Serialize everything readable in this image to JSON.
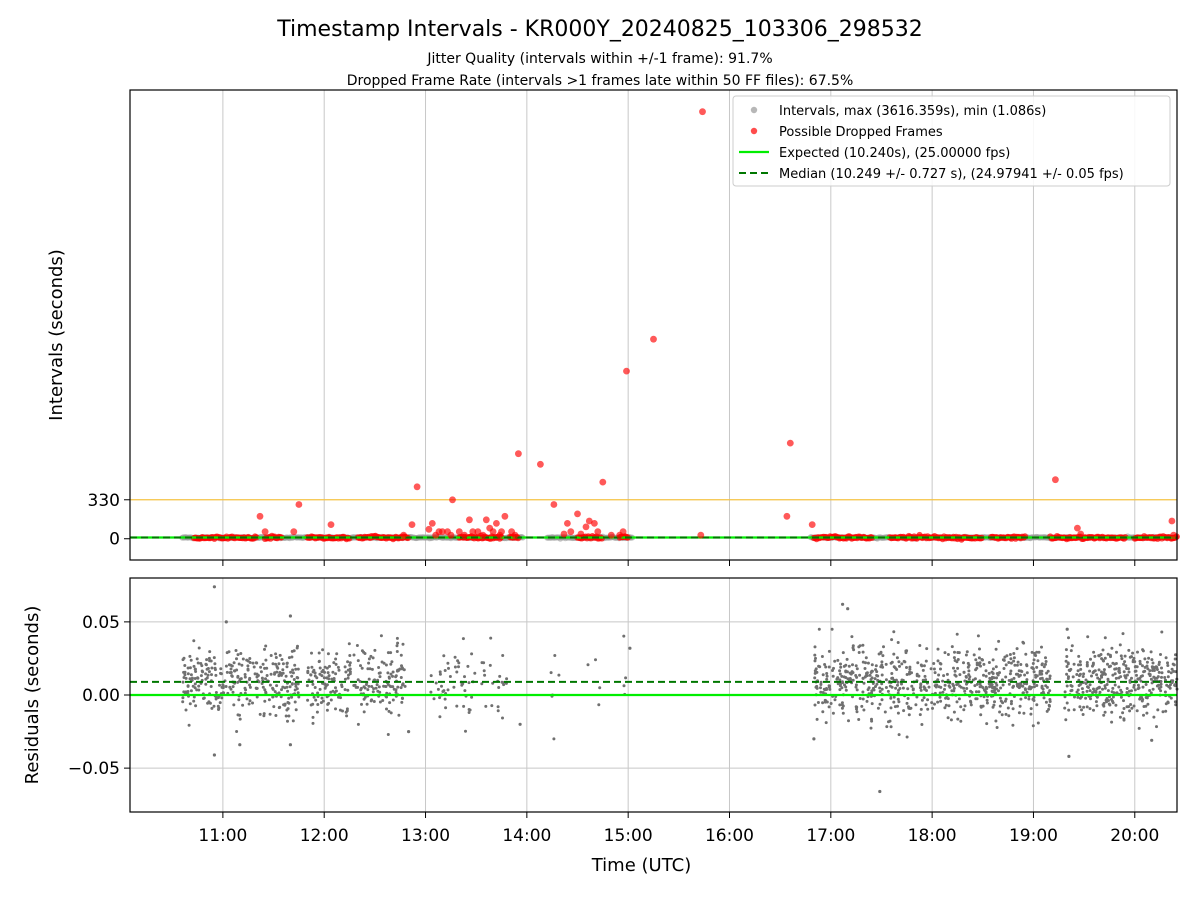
{
  "title": "Timestamp Intervals - KR000Y_20240825_103306_298532",
  "subtitle_1": "Jitter Quality (intervals within +/-1 frame): 91.7%",
  "subtitle_2": "Dropped Frame Rate (intervals >1 frames late within 50 FF files): 67.5%",
  "colors": {
    "intervals": "#999999",
    "dropped": "#ff0000",
    "expected": "#00ee00",
    "median": "#007700",
    "threshold": "#f5c242",
    "residual": "#707070",
    "grid": "#c8c8c8"
  },
  "chart_data": [
    {
      "type": "scatter",
      "panel": "top",
      "ylabel": "Intervals (seconds)",
      "y_ticks": [
        0,
        330
      ],
      "y_tick_labels": [
        "0",
        "330"
      ],
      "ylim": [
        -180,
        3800
      ],
      "xlim": [
        "10:05",
        "20:25"
      ],
      "grid": "x",
      "threshold_line": 330,
      "legend_position": "top-right",
      "legend": [
        "Intervals, max (3616.359s), min (1.086s)",
        "Possible Dropped Frames",
        "Expected (10.240s), (25.00000 fps)",
        "Median (10.249 +/- 0.727 s), (24.97941 +/- 0.05 fps)"
      ],
      "expected": 10.24,
      "median": 10.249,
      "dropped_frames": [
        {
          "t": "11:22",
          "y": 190
        },
        {
          "t": "11:25",
          "y": 60
        },
        {
          "t": "11:42",
          "y": 60
        },
        {
          "t": "11:45",
          "y": 290
        },
        {
          "t": "12:04",
          "y": 120
        },
        {
          "t": "12:47",
          "y": 30
        },
        {
          "t": "12:52",
          "y": 120
        },
        {
          "t": "12:55",
          "y": 440
        },
        {
          "t": "13:02",
          "y": 80
        },
        {
          "t": "13:04",
          "y": 130
        },
        {
          "t": "13:06",
          "y": 30
        },
        {
          "t": "13:08",
          "y": 60
        },
        {
          "t": "13:10",
          "y": 60
        },
        {
          "t": "13:13",
          "y": 60
        },
        {
          "t": "13:15",
          "y": 30
        },
        {
          "t": "13:16",
          "y": 330
        },
        {
          "t": "13:20",
          "y": 60
        },
        {
          "t": "13:23",
          "y": 30
        },
        {
          "t": "13:26",
          "y": 160
        },
        {
          "t": "13:28",
          "y": 60
        },
        {
          "t": "13:31",
          "y": 60
        },
        {
          "t": "13:34",
          "y": 30
        },
        {
          "t": "13:36",
          "y": 160
        },
        {
          "t": "13:38",
          "y": 90
        },
        {
          "t": "13:40",
          "y": 60
        },
        {
          "t": "13:42",
          "y": 130
        },
        {
          "t": "13:44",
          "y": 30
        },
        {
          "t": "13:45",
          "y": 60
        },
        {
          "t": "13:47",
          "y": 190
        },
        {
          "t": "13:51",
          "y": 60
        },
        {
          "t": "13:53",
          "y": 30
        },
        {
          "t": "13:55",
          "y": 720
        },
        {
          "t": "14:08",
          "y": 630
        },
        {
          "t": "14:16",
          "y": 290
        },
        {
          "t": "14:22",
          "y": 40
        },
        {
          "t": "14:24",
          "y": 130
        },
        {
          "t": "14:26",
          "y": 60
        },
        {
          "t": "14:30",
          "y": 210
        },
        {
          "t": "14:32",
          "y": 40
        },
        {
          "t": "14:35",
          "y": 100
        },
        {
          "t": "14:37",
          "y": 150
        },
        {
          "t": "14:40",
          "y": 130
        },
        {
          "t": "14:42",
          "y": 60
        },
        {
          "t": "14:45",
          "y": 480
        },
        {
          "t": "14:50",
          "y": 30
        },
        {
          "t": "14:55",
          "y": 30
        },
        {
          "t": "14:57",
          "y": 60
        },
        {
          "t": "14:59",
          "y": 1420
        },
        {
          "t": "15:15",
          "y": 1690
        },
        {
          "t": "15:43",
          "y": 30
        },
        {
          "t": "15:44",
          "y": 3616
        },
        {
          "t": "16:34",
          "y": 190
        },
        {
          "t": "16:36",
          "y": 810
        },
        {
          "t": "16:49",
          "y": 120
        },
        {
          "t": "19:13",
          "y": 500
        },
        {
          "t": "19:26",
          "y": 90
        },
        {
          "t": "19:28",
          "y": 40
        },
        {
          "t": "20:22",
          "y": 150
        },
        {
          "t": "20:23",
          "y": 30
        }
      ],
      "dropped_clusters": [
        {
          "start": "10:43",
          "end": "11:20"
        },
        {
          "start": "11:25",
          "end": "11:35"
        },
        {
          "start": "11:50",
          "end": "12:15"
        },
        {
          "start": "12:20",
          "end": "12:50"
        },
        {
          "start": "13:20",
          "end": "13:45"
        },
        {
          "start": "13:50",
          "end": "13:55"
        },
        {
          "start": "14:30",
          "end": "14:45"
        },
        {
          "start": "14:55",
          "end": "15:00"
        },
        {
          "start": "16:50",
          "end": "17:25"
        },
        {
          "start": "17:35",
          "end": "18:30"
        },
        {
          "start": "18:35",
          "end": "18:55"
        },
        {
          "start": "19:10",
          "end": "19:20"
        },
        {
          "start": "19:20",
          "end": "19:55"
        },
        {
          "start": "20:00",
          "end": "20:25"
        }
      ]
    },
    {
      "type": "scatter",
      "panel": "bottom",
      "xlabel": "Time (UTC)",
      "ylabel": "Residuals (seconds)",
      "y_ticks": [
        0.05,
        0.0,
        -0.05
      ],
      "y_tick_labels": [
        "0.05",
        "0.00",
        "−0.05"
      ],
      "ylim": [
        -0.08,
        0.08
      ],
      "x_ticks": [
        "11:00",
        "12:00",
        "13:00",
        "14:00",
        "15:00",
        "16:00",
        "17:00",
        "18:00",
        "19:00",
        "20:00"
      ],
      "grid": "both",
      "expected_residual": 0.0,
      "median_residual": 0.009,
      "residual_spread": 0.016,
      "outliers": [
        {
          "t": "10:55",
          "y": 0.074
        },
        {
          "t": "10:55",
          "y": -0.041
        },
        {
          "t": "11:02",
          "y": 0.05
        },
        {
          "t": "11:40",
          "y": 0.054
        },
        {
          "t": "11:10",
          "y": -0.034
        },
        {
          "t": "11:40",
          "y": -0.034
        },
        {
          "t": "12:50",
          "y": -0.025
        },
        {
          "t": "13:56",
          "y": -0.02
        },
        {
          "t": "15:01",
          "y": 0.032
        },
        {
          "t": "17:07",
          "y": 0.062
        },
        {
          "t": "17:10",
          "y": 0.059
        },
        {
          "t": "17:29",
          "y": -0.066
        },
        {
          "t": "19:20",
          "y": 0.045
        },
        {
          "t": "19:21",
          "y": -0.042
        },
        {
          "t": "20:10",
          "y": -0.031
        },
        {
          "t": "16:50",
          "y": -0.03
        }
      ],
      "dense_segments": [
        {
          "start": "10:36",
          "end": "11:35",
          "n": 260
        },
        {
          "start": "11:35",
          "end": "11:45",
          "n": 60
        },
        {
          "start": "11:50",
          "end": "12:48",
          "n": 240
        },
        {
          "start": "13:03",
          "end": "13:48",
          "n": 70
        },
        {
          "start": "14:14",
          "end": "14:20",
          "n": 6
        },
        {
          "start": "14:35",
          "end": "14:45",
          "n": 4
        },
        {
          "start": "14:57",
          "end": "14:59",
          "n": 4
        },
        {
          "start": "16:50",
          "end": "19:10",
          "n": 700
        },
        {
          "start": "19:18",
          "end": "20:25",
          "n": 380
        }
      ]
    }
  ]
}
